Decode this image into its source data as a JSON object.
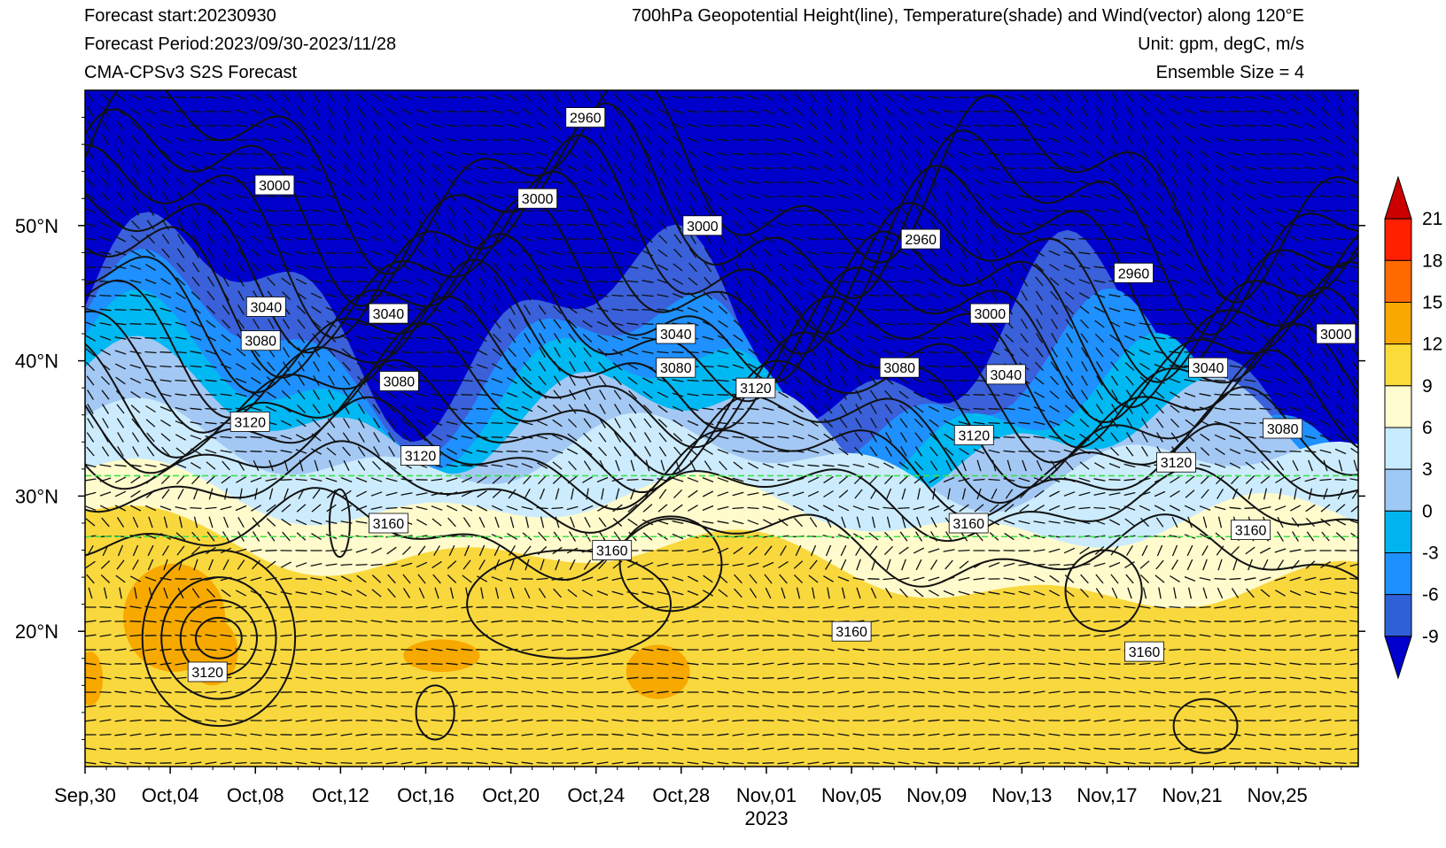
{
  "header": {
    "forecast_start": "Forecast start:20230930",
    "forecast_period": "Forecast Period:2023/09/30-2023/11/28",
    "model": "CMA-CPSv3 S2S Forecast",
    "title": "700hPa Geopotential Height(line), Temperature(shade) and Wind(vector) along 120°E",
    "unit": "Unit: gpm, degC, m/s",
    "ensemble": "Ensemble Size = 4"
  },
  "chart_data": {
    "type": "heatmap",
    "title": "700hPa Geopotential Height(line), Temperature(shade) and Wind(vector) along 120°E",
    "x_ticks": [
      "Sep,30",
      "Oct,04",
      "Oct,08",
      "Oct,12",
      "Oct,16",
      "Oct,20",
      "Oct,24",
      "Oct,28",
      "Nov,01",
      "Nov,05",
      "Nov,09",
      "Nov,13",
      "Nov,17",
      "Nov,21",
      "Nov,25"
    ],
    "x_year_label": "2023",
    "xlim": [
      "2023-09-30",
      "2023-11-28"
    ],
    "y_ticks": [
      "20°N",
      "30°N",
      "40°N",
      "50°N"
    ],
    "y_tick_values": [
      20,
      30,
      40,
      50
    ],
    "ylim": [
      10,
      60
    ],
    "reference_lines_lat": [
      31.5,
      27
    ],
    "colorbar": {
      "levels": [
        -9,
        -6,
        -3,
        0,
        3,
        6,
        9,
        12,
        15,
        18,
        21
      ],
      "labels": [
        "-9",
        "-6",
        "-3",
        "0",
        "3",
        "6",
        "9",
        "12",
        "15",
        "18",
        "21"
      ],
      "colors": [
        "#0000cc",
        "#3060d8",
        "#1e90ff",
        "#00b4f0",
        "#9ec8f5",
        "#c8ecff",
        "#fffcd0",
        "#fbdb3a",
        "#f8a800",
        "#ff6a00",
        "#ff2000",
        "#cc0000"
      ]
    },
    "temperature_zones": [
      {
        "name": "-9",
        "color": "#0000cc"
      },
      {
        "name": "-6",
        "color": "#3a60da"
      },
      {
        "name": "-3",
        "color": "#1e90ff"
      },
      {
        "name": "0",
        "color": "#00b8f2"
      },
      {
        "name": "3",
        "color": "#a4c8f4"
      },
      {
        "name": "6",
        "color": "#ccecfd"
      },
      {
        "name": "9",
        "color": "#fffbcc"
      },
      {
        "name": "12",
        "color": "#f9d83e"
      },
      {
        "name": "15",
        "color": "#f7a900"
      }
    ],
    "contour_labels": [
      {
        "text": "3000",
        "day": 17.8,
        "lat": 53
      },
      {
        "text": "2960",
        "day": 47,
        "lat": 58
      },
      {
        "text": "3000",
        "day": 42.5,
        "lat": 52
      },
      {
        "text": "3000",
        "day": 58.0,
        "lat": 50
      },
      {
        "text": "2960",
        "day": 78.5,
        "lat": 49
      },
      {
        "text": "2960",
        "day": 98.5,
        "lat": 46.5
      },
      {
        "text": "3000",
        "day": 85.0,
        "lat": 43.5
      },
      {
        "text": "3000",
        "day": 117.5,
        "lat": 42
      },
      {
        "text": "3040",
        "day": 17.0,
        "lat": 44
      },
      {
        "text": "3040",
        "day": 28.5,
        "lat": 43.5
      },
      {
        "text": "3040",
        "day": 55.5,
        "lat": 42
      },
      {
        "text": "3040",
        "day": 86.5,
        "lat": 39
      },
      {
        "text": "3040",
        "day": 105.5,
        "lat": 39.5
      },
      {
        "text": "3080",
        "day": 16.5,
        "lat": 41.5
      },
      {
        "text": "3080",
        "day": 29.5,
        "lat": 38.5
      },
      {
        "text": "3080",
        "day": 55.5,
        "lat": 39.5
      },
      {
        "text": "3080",
        "day": 76.5,
        "lat": 39.5
      },
      {
        "text": "3080",
        "day": 112.5,
        "lat": 35
      },
      {
        "text": "3120",
        "day": 15.5,
        "lat": 35.5
      },
      {
        "text": "3120",
        "day": 31.5,
        "lat": 33
      },
      {
        "text": "3120",
        "day": 63.0,
        "lat": 38
      },
      {
        "text": "3120",
        "day": 83.5,
        "lat": 34.5
      },
      {
        "text": "3120",
        "day": 102.5,
        "lat": 32.5
      },
      {
        "text": "3160",
        "day": 28.5,
        "lat": 28
      },
      {
        "text": "3160",
        "day": 49.5,
        "lat": 26
      },
      {
        "text": "3160",
        "day": 83.0,
        "lat": 28
      },
      {
        "text": "3160",
        "day": 109.5,
        "lat": 27.5
      },
      {
        "text": "3160",
        "day": 72.0,
        "lat": 20
      },
      {
        "text": "3160",
        "day": 99.5,
        "lat": 18.5
      },
      {
        "text": "3120",
        "day": 11.5,
        "lat": 17
      }
    ]
  }
}
